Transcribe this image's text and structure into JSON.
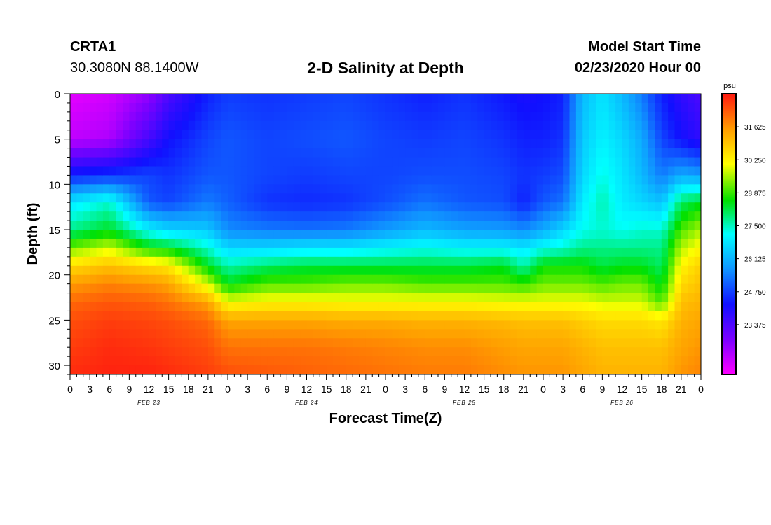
{
  "header": {
    "station": "CRTA1",
    "coords": "30.3080N 88.1400W",
    "title": "2-D Salinity at Depth",
    "model_start_label": "Model Start Time",
    "model_start_value": "02/23/2020 Hour 00"
  },
  "chart_data": {
    "type": "heatmap",
    "title": "2-D Salinity at Depth",
    "xlabel": "Forecast Time(Z)",
    "ylabel": "Depth (ft)",
    "xlim": [
      0,
      96
    ],
    "ylim": [
      0,
      31
    ],
    "y_inverted": true,
    "x_tick_labels": [
      "0",
      "3",
      "6",
      "9",
      "12",
      "15",
      "18",
      "21",
      "0",
      "3",
      "6",
      "9",
      "12",
      "15",
      "18",
      "21",
      "0",
      "3",
      "6",
      "9",
      "12",
      "15",
      "18",
      "21",
      "0",
      "3",
      "6",
      "9",
      "12",
      "15",
      "18",
      "21",
      "0"
    ],
    "y_ticks": [
      0,
      5,
      10,
      15,
      20,
      25,
      30
    ],
    "day_labels": [
      {
        "label": "FEB 23",
        "hour": 12
      },
      {
        "label": "FEB 24",
        "hour": 36
      },
      {
        "label": "FEB 25",
        "hour": 60
      },
      {
        "label": "FEB 26",
        "hour": 84
      }
    ],
    "colorbar": {
      "unit": "psu",
      "min": 21.3,
      "max": 33.0,
      "tick_labels": [
        "31.625",
        "30.250",
        "28.875",
        "27.500",
        "26.125",
        "24.750",
        "23.375"
      ],
      "tick_values": [
        31.625,
        30.25,
        28.875,
        27.5,
        26.125,
        24.75,
        23.375
      ]
    },
    "columns_hour": [
      0,
      6,
      12,
      15,
      21,
      24,
      30,
      36,
      42,
      48,
      54,
      60,
      66,
      69,
      72,
      75,
      78,
      81,
      84,
      87,
      90,
      93,
      96
    ],
    "profile_depth_ft": [
      0,
      5,
      9,
      12,
      15,
      17,
      19,
      21,
      23,
      25,
      28,
      31
    ],
    "salinity_psu": [
      [
        21.6,
        22.0,
        24.4,
        26.8,
        27.8,
        29.2,
        30.6,
        31.5,
        32.1,
        32.4,
        32.6,
        32.8
      ],
      [
        21.8,
        22.2,
        24.6,
        27.4,
        28.4,
        29.8,
        31.0,
        31.8,
        32.3,
        32.6,
        32.8,
        32.9
      ],
      [
        22.5,
        23.5,
        24.8,
        25.0,
        27.0,
        28.6,
        30.6,
        31.6,
        32.2,
        32.5,
        32.7,
        32.9
      ],
      [
        23.4,
        24.2,
        24.6,
        24.8,
        26.6,
        28.4,
        30.4,
        31.4,
        32.0,
        32.4,
        32.6,
        32.8
      ],
      [
        24.4,
        24.8,
        25.0,
        25.4,
        26.4,
        27.4,
        28.4,
        29.8,
        31.4,
        32.1,
        32.4,
        32.6
      ],
      [
        24.7,
        25.0,
        25.0,
        25.1,
        25.6,
        26.6,
        27.6,
        28.4,
        30.0,
        31.4,
        32.0,
        32.4
      ],
      [
        24.6,
        24.8,
        24.8,
        24.6,
        25.4,
        26.6,
        28.0,
        29.0,
        30.2,
        31.4,
        32.0,
        32.3
      ],
      [
        24.7,
        24.9,
        24.7,
        24.5,
        25.3,
        26.8,
        28.2,
        29.0,
        30.2,
        31.4,
        32.0,
        32.2
      ],
      [
        24.8,
        25.0,
        24.8,
        24.6,
        25.4,
        26.8,
        28.2,
        29.2,
        30.1,
        31.3,
        31.9,
        32.1
      ],
      [
        24.6,
        24.8,
        24.8,
        24.9,
        25.8,
        27.0,
        28.2,
        29.2,
        30.1,
        31.3,
        31.8,
        32.0
      ],
      [
        24.4,
        24.7,
        24.9,
        25.3,
        26.2,
        27.2,
        28.2,
        29.0,
        30.1,
        31.2,
        31.7,
        31.9
      ],
      [
        24.6,
        24.8,
        24.9,
        25.0,
        25.9,
        27.0,
        28.2,
        29.0,
        30.1,
        31.2,
        31.7,
        31.9
      ],
      [
        24.3,
        24.6,
        24.8,
        24.9,
        25.8,
        27.0,
        28.4,
        29.0,
        30.0,
        31.1,
        31.5,
        31.7
      ],
      [
        24.1,
        24.4,
        24.6,
        24.4,
        25.6,
        26.8,
        27.6,
        28.8,
        30.0,
        31.0,
        31.4,
        31.6
      ],
      [
        24.2,
        24.4,
        24.7,
        25.0,
        26.0,
        27.2,
        28.6,
        29.2,
        30.0,
        31.0,
        31.4,
        31.6
      ],
      [
        24.4,
        24.6,
        24.9,
        25.3,
        26.6,
        27.4,
        28.6,
        29.2,
        30.0,
        31.0,
        31.4,
        31.6
      ],
      [
        26.2,
        26.4,
        26.6,
        26.9,
        27.2,
        27.8,
        28.6,
        29.2,
        30.0,
        30.8,
        31.2,
        31.4
      ],
      [
        26.8,
        27.0,
        27.3,
        27.6,
        27.4,
        27.8,
        28.2,
        29.0,
        29.8,
        30.6,
        31.0,
        31.2
      ],
      [
        26.2,
        26.6,
        26.8,
        26.9,
        27.2,
        27.8,
        28.4,
        29.2,
        29.8,
        30.6,
        31.0,
        31.2
      ],
      [
        25.4,
        26.0,
        26.2,
        26.6,
        27.4,
        27.8,
        28.4,
        29.2,
        29.8,
        30.6,
        31.0,
        31.2
      ],
      [
        24.4,
        24.8,
        25.4,
        26.3,
        27.4,
        27.8,
        28.0,
        28.4,
        29.0,
        30.4,
        31.0,
        31.2
      ],
      [
        23.8,
        24.2,
        26.0,
        28.0,
        29.0,
        29.6,
        30.2,
        30.6,
        31.0,
        31.2,
        31.4,
        31.6
      ],
      [
        23.4,
        23.8,
        25.8,
        28.4,
        29.6,
        30.2,
        30.8,
        31.0,
        31.2,
        31.4,
        31.6,
        31.8
      ]
    ]
  }
}
